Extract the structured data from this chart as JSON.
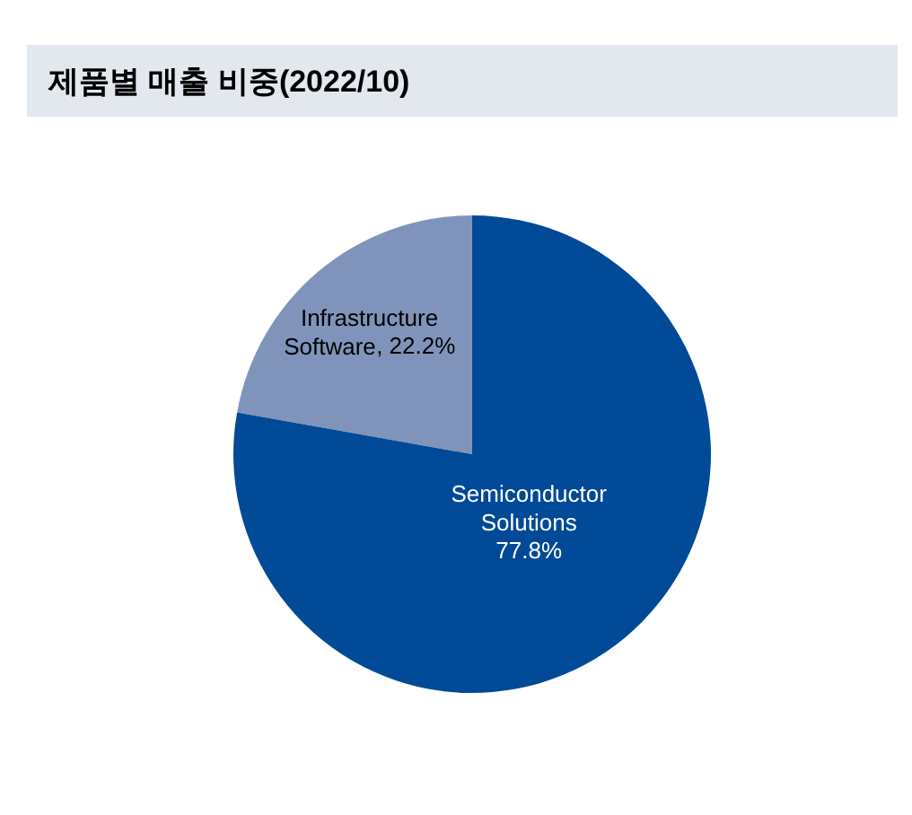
{
  "chart_data": {
    "type": "pie",
    "title": "제품별 매출 비중(2022/10)",
    "categories": [
      "Infrastructure Software",
      "Semiconductor Solutions"
    ],
    "values": [
      22.2,
      77.8
    ],
    "colors": [
      "#8094bb",
      "#004a98"
    ],
    "value_labels": [
      ", 22.2%",
      "77.8%"
    ]
  }
}
